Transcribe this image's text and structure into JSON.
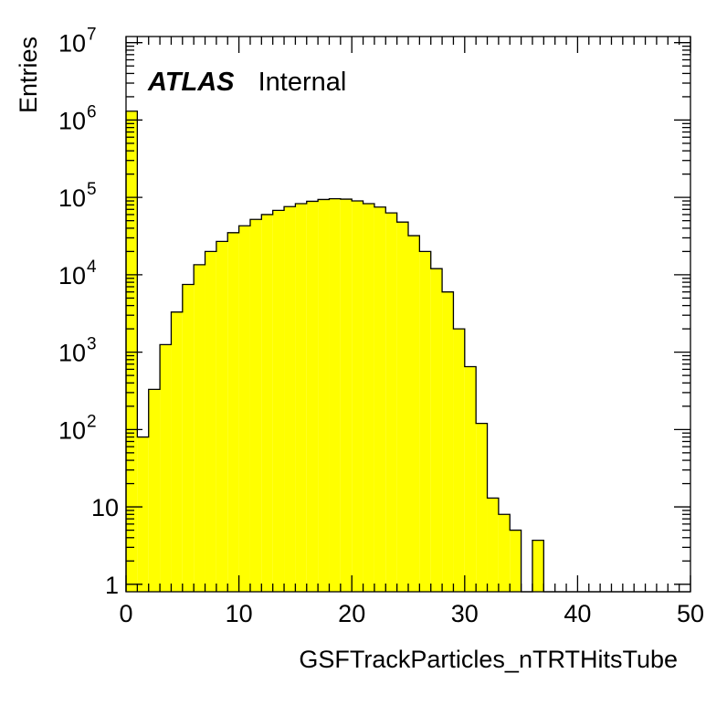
{
  "chart_data": {
    "type": "bar",
    "title": "",
    "xlabel": "GSFTrackParticles_nTRTHitsTube",
    "ylabel": "Entries",
    "xlim": [
      0,
      50
    ],
    "ylim": [
      0.8,
      12000000
    ],
    "y_scale": "log",
    "x_ticks": [
      "0",
      "10",
      "20",
      "30",
      "40",
      "50"
    ],
    "y_ticks": [
      {
        "value": 1,
        "base": "1",
        "exp": ""
      },
      {
        "value": 10,
        "base": "10",
        "exp": ""
      },
      {
        "value": 100,
        "base": "10",
        "exp": "2"
      },
      {
        "value": 1000,
        "base": "10",
        "exp": "3"
      },
      {
        "value": 10000,
        "base": "10",
        "exp": "4"
      },
      {
        "value": 100000,
        "base": "10",
        "exp": "5"
      },
      {
        "value": 1000000,
        "base": "10",
        "exp": "6"
      },
      {
        "value": 10000000,
        "base": "10",
        "exp": "7"
      }
    ],
    "bin_width": 1,
    "bin_edges_start": 0,
    "values": [
      1300000,
      80,
      330,
      1250,
      3300,
      7500,
      13500,
      20000,
      27000,
      35000,
      43000,
      52000,
      60000,
      68000,
      76000,
      83000,
      89000,
      94000,
      96000,
      95000,
      90000,
      83000,
      75000,
      63000,
      48000,
      32000,
      20000,
      12000,
      6000,
      2000,
      650,
      120,
      13,
      8,
      5,
      0,
      3.7,
      0,
      0,
      0,
      0,
      0,
      0,
      0,
      0,
      0,
      0,
      0,
      0,
      0
    ],
    "fill_color": "#ffff00",
    "line_color": "#000000",
    "grid": false,
    "legend": "none"
  },
  "label": {
    "bold": "ATLAS",
    "normal": "Internal"
  }
}
